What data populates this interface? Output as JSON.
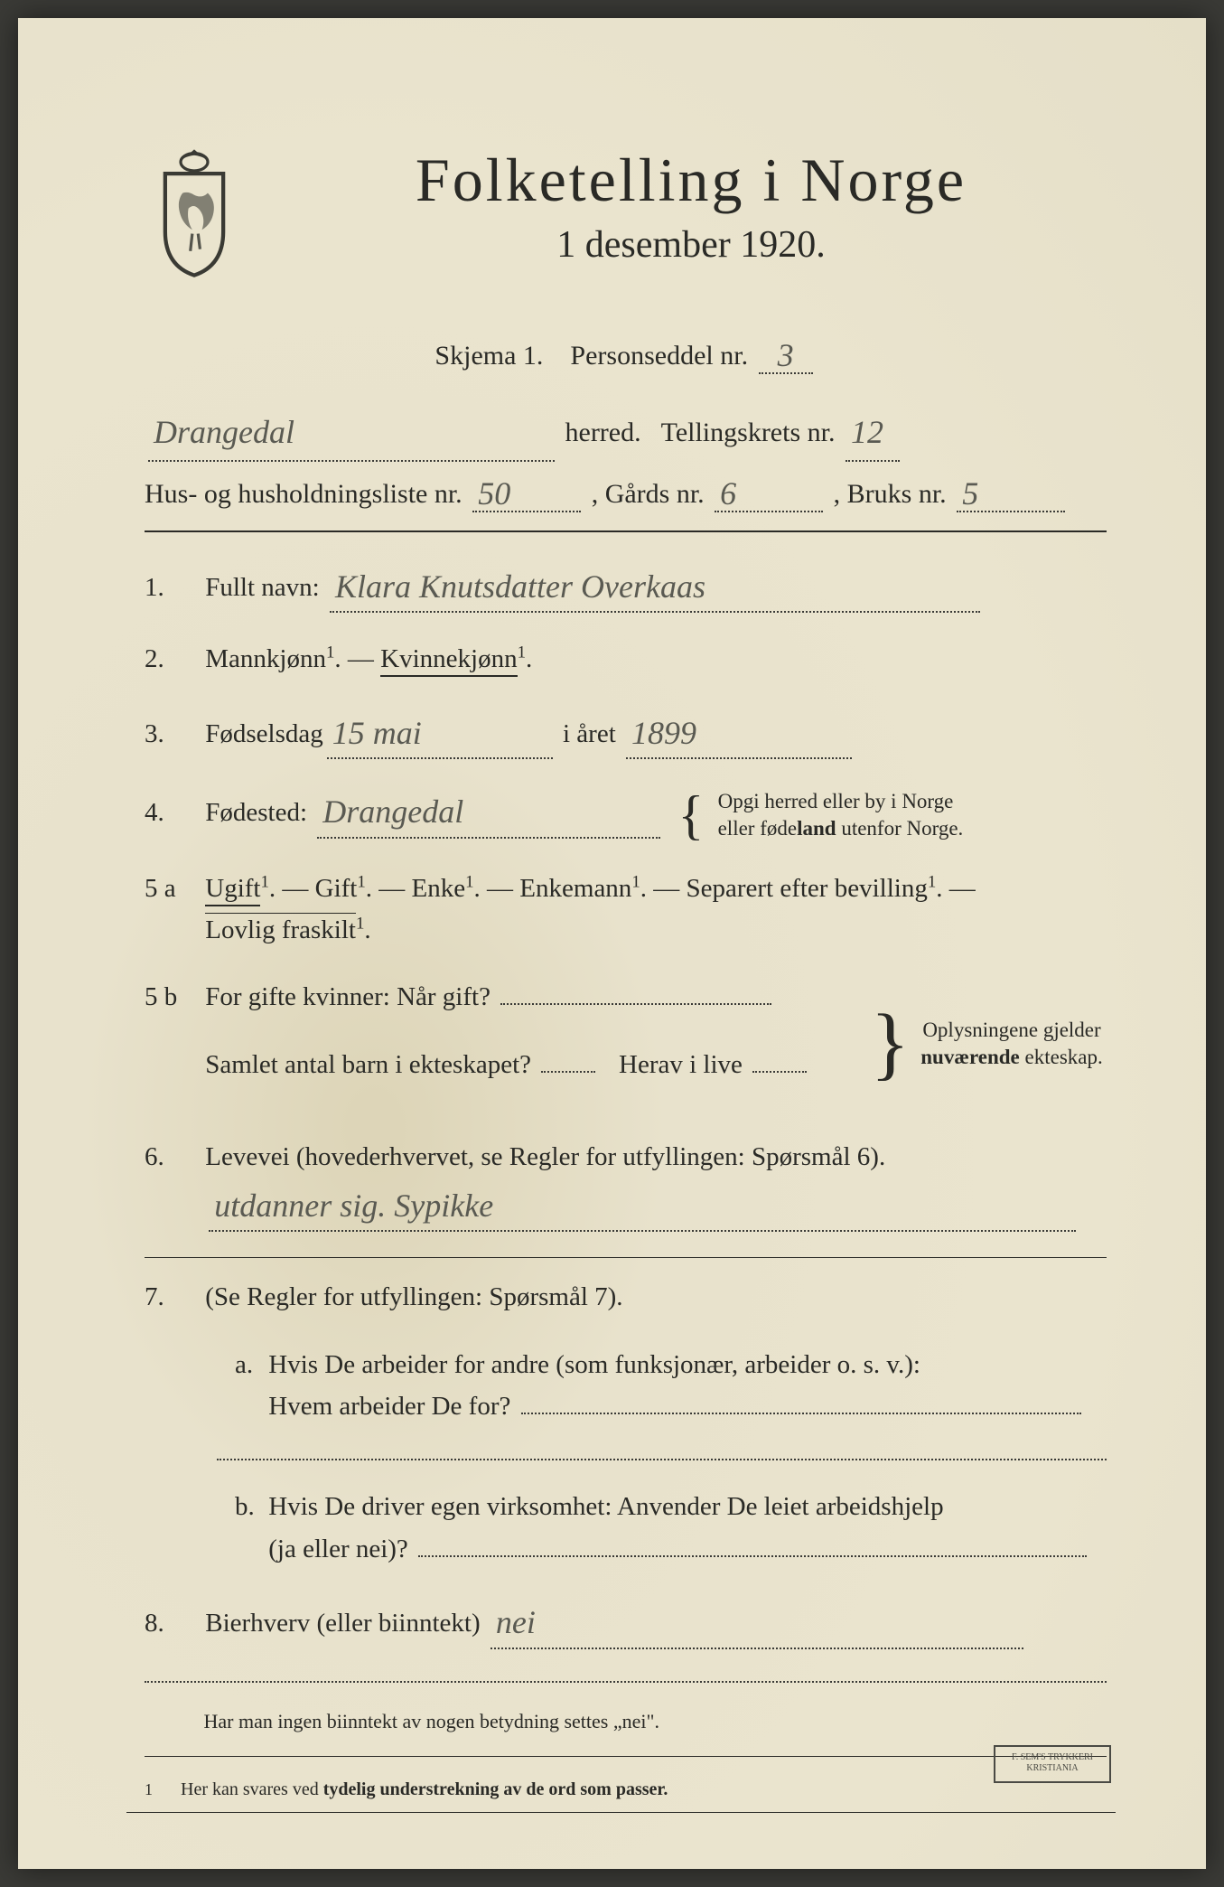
{
  "title": "Folketelling i Norge",
  "subtitle": "1 desember 1920.",
  "skjema_label": "Skjema 1.",
  "personseddel_label": "Personseddel nr.",
  "personseddel_nr": "3",
  "herred_value": "Drangedal",
  "herred_label": "herred.",
  "tellingskrets_label": "Tellingskrets nr.",
  "tellingskrets_nr": "12",
  "hus_label": "Hus- og husholdningsliste nr.",
  "hus_nr": "50",
  "gards_label": ", Gårds nr.",
  "gards_nr": "6",
  "bruks_label": ", Bruks nr.",
  "bruks_nr": "5",
  "q1": {
    "num": "1.",
    "label": "Fullt navn:",
    "value": "Klara Knutsdatter Overkaas"
  },
  "q2": {
    "num": "2.",
    "mann": "Mannkjønn",
    "dash": " — ",
    "kvinne": "Kvinnekjønn",
    "sup": "1",
    "period": "."
  },
  "q3": {
    "num": "3.",
    "label": "Fødselsdag",
    "day": "15 mai",
    "aret": "i året",
    "year": "1899"
  },
  "q4": {
    "num": "4.",
    "label": "Fødested:",
    "value": "Drangedal",
    "note": "Opgi herred eller by i Norge eller føde<b>land</b> utenfor Norge."
  },
  "q5a": {
    "num": "5 a",
    "ugift": "Ugift",
    "gift": "Gift",
    "enke": "Enke",
    "enkemann": "Enkemann",
    "separert": "Separert efter bevilling",
    "lovlig": "Lovlig fraskilt",
    "sup": "1",
    "period": ".",
    "dash": " — "
  },
  "q5b": {
    "num": "5 b",
    "line1_label": "For gifte kvinner:  Når gift?",
    "line2_label": "Samlet antal barn i ekteskapet?",
    "herav": "Herav i live",
    "note": "Oplysningene gjelder <b>nuværende</b> ekteskap."
  },
  "q6": {
    "num": "6.",
    "label": "Levevei (hovederhvervet, se Regler for utfyllingen:  Spørsmål 6).",
    "value": "utdanner sig.  Sypikke"
  },
  "q7": {
    "num": "7.",
    "label": "(Se Regler for utfyllingen:  Spørsmål 7).",
    "a_letter": "a.",
    "a_line1": "Hvis De arbeider for andre (som funksjonær, arbeider o. s. v.):",
    "a_line2": "Hvem arbeider De for?",
    "b_letter": "b.",
    "b_line1": "Hvis De driver egen virksomhet:  Anvender De leiet arbeidshjelp",
    "b_line2": "(ja eller nei)?"
  },
  "q8": {
    "num": "8.",
    "label": "Bierhverv (eller biinntekt)",
    "value": "nei"
  },
  "instr1": "Har man ingen biinntekt av nogen betydning settes „nei\".",
  "footnote_num": "1",
  "footnote_text": "Her kan svares ved tydelig understrekning av de ord som passer.",
  "stamp_text": "F. SEM'S TRYKKERI KRISTIANIA"
}
